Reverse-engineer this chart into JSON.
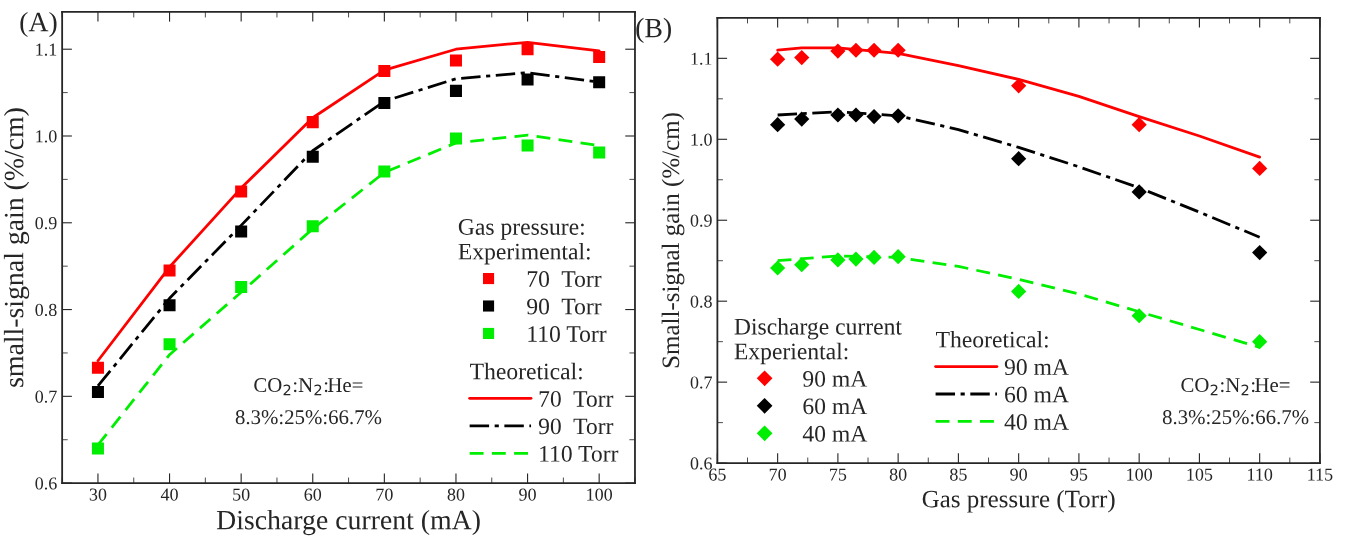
{
  "chart_data": [
    {
      "type": "scatter",
      "title": "(A)",
      "xlabel": "Discharge current (mA)",
      "ylabel": "small-signal gain (%/cm)",
      "legend_title": "Gas pressure:",
      "annotations": [
        "Experimental:",
        "Theoretical:",
        "CO$_{2}$:N$_{2}$:He=\n8.3%:25%:66.7%"
      ],
      "xlim": [
        25,
        105
      ],
      "xticks": [
        30,
        40,
        50,
        60,
        70,
        80,
        90,
        100
      ],
      "ylim": [
        0.6,
        1.143
      ],
      "yticks": [
        0.6,
        0.7,
        0.8,
        0.9,
        {
          "value": 1.0,
          "label": "1.0"
        },
        1.1
      ],
      "legend": "bottom right",
      "grid": false,
      "x": [
        30,
        40,
        50,
        60,
        70,
        80,
        90,
        100
      ],
      "series": [
        {
          "name": "70  Torr",
          "marker": "square",
          "color": "#ff0000",
          "values": [
            0.733,
            0.845,
            0.936,
            1.016,
            1.075,
            1.087,
            1.1,
            1.091
          ]
        },
        {
          "name": "90  Torr",
          "marker": "square",
          "color": "#000000",
          "values": [
            0.705,
            0.805,
            0.89,
            0.976,
            1.038,
            1.052,
            1.065,
            1.062
          ]
        },
        {
          "name": "110 Torr",
          "marker": "square",
          "color": "#00ee00",
          "values": [
            0.64,
            0.76,
            0.826,
            0.896,
            0.959,
            0.997,
            0.989,
            0.981
          ]
        },
        {
          "name": "70  Torr",
          "type": "line",
          "line_style": "solid",
          "color": "#ff0000",
          "values": [
            0.741,
            0.849,
            0.94,
            1.021,
            1.076,
            1.1,
            1.108,
            1.098
          ]
        },
        {
          "name": "90  Torr",
          "type": "line",
          "line_style": "dashdot",
          "color": "#000000",
          "values": [
            0.712,
            0.813,
            0.897,
            0.983,
            1.04,
            1.066,
            1.073,
            1.062
          ]
        },
        {
          "name": "110 Torr",
          "type": "line",
          "line_style": "dashed",
          "color": "#00ee00",
          "values": [
            0.644,
            0.748,
            0.82,
            0.893,
            0.958,
            0.992,
            1.001,
            0.989
          ]
        }
      ]
    },
    {
      "type": "scatter",
      "title": "(B)",
      "xlabel": "Gas pressure (Torr)",
      "ylabel": "Small-signal gain (%/cm)",
      "legend_title": "Discharge current",
      "annotations": [
        "Experiental:",
        "Theoretical:",
        "CO$_{2}$:N$_{2}$:He=\n8.3%:25%:66.7%"
      ],
      "xlim": [
        65,
        115
      ],
      "xticks": [
        65,
        70,
        75,
        80,
        85,
        90,
        95,
        100,
        105,
        110,
        115
      ],
      "ylim": [
        0.6,
        1.15
      ],
      "yticks": [
        0.6,
        0.7,
        0.8,
        0.9,
        {
          "value": 1.0,
          "label": "1.0"
        },
        1.1
      ],
      "legend": "bottom left",
      "grid": false,
      "series": [
        {
          "name": "90 mA",
          "marker": "diamond",
          "color": "#ff0000",
          "x": [
            70,
            72,
            75,
            76.5,
            78,
            80,
            90,
            100,
            110
          ],
          "values": [
            1.099,
            1.101,
            1.109,
            1.11,
            1.11,
            1.11,
            1.066,
            1.018,
            0.964
          ]
        },
        {
          "name": "60 mA",
          "marker": "diamond",
          "color": "#000000",
          "x": [
            70,
            72,
            75,
            76.5,
            78,
            80,
            90,
            100,
            110
          ],
          "values": [
            1.018,
            1.025,
            1.03,
            1.03,
            1.028,
            1.029,
            0.976,
            0.935,
            0.86
          ]
        },
        {
          "name": "40 mA",
          "marker": "diamond",
          "color": "#00ee00",
          "x": [
            70,
            72,
            75,
            76.5,
            78,
            80,
            90,
            100,
            110
          ],
          "values": [
            0.841,
            0.845,
            0.851,
            0.852,
            0.854,
            0.855,
            0.812,
            0.782,
            0.75
          ]
        },
        {
          "name": "90 mA",
          "type": "line",
          "line_style": "solid",
          "color": "#ff0000",
          "x": [
            70,
            72,
            75,
            80,
            85,
            90,
            95,
            100,
            105,
            110
          ],
          "values": [
            1.11,
            1.113,
            1.113,
            1.106,
            1.091,
            1.074,
            1.053,
            1.028,
            1.004,
            0.978
          ]
        },
        {
          "name": "60 mA",
          "type": "line",
          "line_style": "dashdot",
          "color": "#000000",
          "x": [
            70,
            75,
            80,
            85,
            90,
            95,
            100,
            105,
            110
          ],
          "values": [
            1.03,
            1.034,
            1.029,
            1.012,
            0.99,
            0.966,
            0.94,
            0.91,
            0.879
          ]
        },
        {
          "name": "40 mA",
          "type": "line",
          "line_style": "dashed",
          "color": "#00ee00",
          "x": [
            70,
            75,
            80,
            85,
            90,
            95,
            100,
            105,
            110
          ],
          "values": [
            0.85,
            0.856,
            0.854,
            0.843,
            0.827,
            0.809,
            0.787,
            0.765,
            0.743
          ]
        }
      ]
    }
  ]
}
